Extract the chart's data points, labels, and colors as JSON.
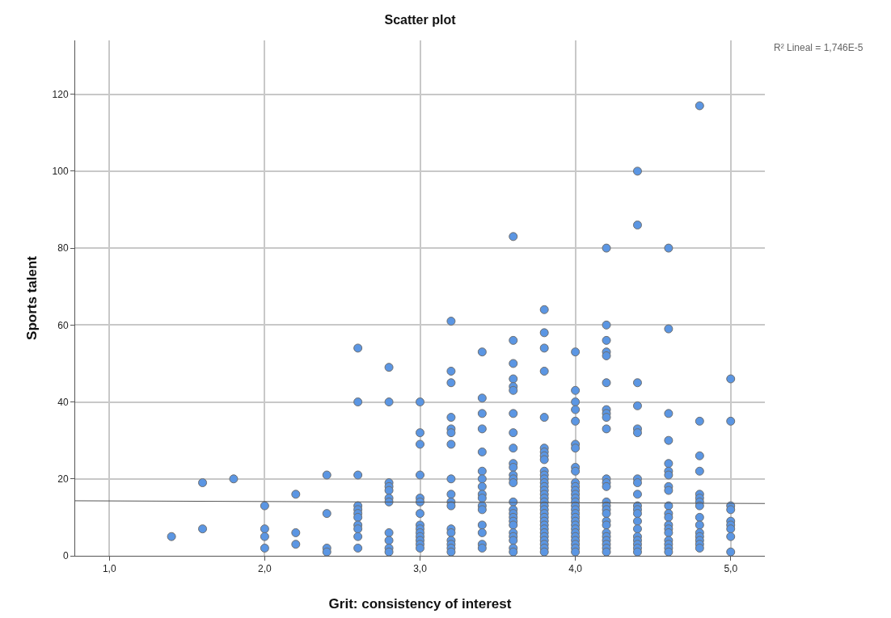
{
  "chart_data": {
    "type": "scatter",
    "title": "Scatter plot",
    "xlabel": "Grit: consistency of interest",
    "ylabel": "Sports talent",
    "xlim": [
      0.78,
      5.22
    ],
    "ylim": [
      0,
      134
    ],
    "xticks": [
      {
        "value": 1,
        "label": "1,0"
      },
      {
        "value": 2,
        "label": "2,0"
      },
      {
        "value": 3,
        "label": "3,0"
      },
      {
        "value": 4,
        "label": "4,0"
      },
      {
        "value": 5,
        "label": "5,0"
      }
    ],
    "yticks": [
      0,
      20,
      40,
      60,
      80,
      100,
      120
    ],
    "grid": true,
    "marker": "circle",
    "annotations": [
      "R² Lineal = 1,746E-5"
    ],
    "series": [
      {
        "color": "#5b96e3",
        "x": [
          1.4,
          1.6,
          1.6,
          1.8,
          2.0,
          2.0,
          2.0,
          2.0,
          2.2,
          2.2,
          2.2,
          2.4,
          2.4,
          2.4,
          2.4,
          2.6,
          2.6,
          2.6,
          2.6,
          2.6,
          2.6,
          2.6,
          2.6,
          2.6,
          2.6,
          2.6,
          2.8,
          2.8,
          2.8,
          2.8,
          2.8,
          2.8,
          2.8,
          2.8,
          2.8,
          2.8,
          2.8,
          3.0,
          3.0,
          3.0,
          3.0,
          3.0,
          3.0,
          3.0,
          3.0,
          3.0,
          3.0,
          3.0,
          3.0,
          3.0,
          3.0,
          3.2,
          3.2,
          3.2,
          3.2,
          3.2,
          3.2,
          3.2,
          3.2,
          3.2,
          3.2,
          3.2,
          3.2,
          3.2,
          3.2,
          3.2,
          3.2,
          3.2,
          3.4,
          3.4,
          3.4,
          3.4,
          3.4,
          3.4,
          3.4,
          3.4,
          3.4,
          3.4,
          3.4,
          3.4,
          3.4,
          3.4,
          3.4,
          3.4,
          3.6,
          3.6,
          3.6,
          3.6,
          3.6,
          3.6,
          3.6,
          3.6,
          3.6,
          3.6,
          3.6,
          3.6,
          3.6,
          3.6,
          3.6,
          3.6,
          3.6,
          3.6,
          3.6,
          3.6,
          3.6,
          3.6,
          3.6,
          3.6,
          3.6,
          3.8,
          3.8,
          3.8,
          3.8,
          3.8,
          3.8,
          3.8,
          3.8,
          3.8,
          3.8,
          3.8,
          3.8,
          3.8,
          3.8,
          3.8,
          3.8,
          3.8,
          3.8,
          3.8,
          3.8,
          3.8,
          3.8,
          3.8,
          3.8,
          3.8,
          3.8,
          3.8,
          3.8,
          3.8,
          3.8,
          3.8,
          4.0,
          4.0,
          4.0,
          4.0,
          4.0,
          4.0,
          4.0,
          4.0,
          4.0,
          4.0,
          4.0,
          4.0,
          4.0,
          4.0,
          4.0,
          4.0,
          4.0,
          4.0,
          4.0,
          4.0,
          4.0,
          4.0,
          4.0,
          4.0,
          4.0,
          4.0,
          4.0,
          4.0,
          4.2,
          4.2,
          4.2,
          4.2,
          4.2,
          4.2,
          4.2,
          4.2,
          4.2,
          4.2,
          4.2,
          4.2,
          4.2,
          4.2,
          4.2,
          4.2,
          4.2,
          4.2,
          4.2,
          4.2,
          4.2,
          4.2,
          4.2,
          4.2,
          4.2,
          4.4,
          4.4,
          4.4,
          4.4,
          4.4,
          4.4,
          4.4,
          4.4,
          4.4,
          4.4,
          4.4,
          4.4,
          4.4,
          4.4,
          4.4,
          4.4,
          4.4,
          4.4,
          4.4,
          4.6,
          4.6,
          4.6,
          4.6,
          4.6,
          4.6,
          4.6,
          4.6,
          4.6,
          4.6,
          4.6,
          4.6,
          4.6,
          4.6,
          4.6,
          4.6,
          4.6,
          4.6,
          4.6,
          4.8,
          4.8,
          4.8,
          4.8,
          4.8,
          4.8,
          4.8,
          4.8,
          4.8,
          4.8,
          4.8,
          4.8,
          4.8,
          4.8,
          4.8,
          5.0,
          5.0,
          5.0,
          5.0,
          5.0,
          5.0,
          5.0,
          5.0,
          5.0
        ],
        "values": [
          5,
          19,
          7,
          20,
          13,
          7,
          5,
          2,
          16,
          6,
          3,
          21,
          11,
          2,
          1,
          54,
          40,
          21,
          13,
          12,
          11,
          10,
          8,
          7,
          5,
          2,
          49,
          40,
          19,
          18,
          17,
          15,
          14,
          6,
          4,
          2,
          1,
          40,
          32,
          29,
          21,
          15,
          14,
          11,
          8,
          7,
          6,
          5,
          4,
          3,
          2,
          61,
          48,
          45,
          36,
          33,
          32,
          29,
          20,
          16,
          14,
          13,
          7,
          6,
          4,
          3,
          2,
          1,
          53,
          41,
          37,
          33,
          27,
          22,
          20,
          18,
          16,
          15,
          13,
          12,
          8,
          6,
          3,
          2,
          83,
          56,
          50,
          46,
          44,
          43,
          37,
          32,
          28,
          24,
          23,
          21,
          20,
          19,
          14,
          12,
          11,
          10,
          9,
          8,
          6,
          5,
          4,
          2,
          1,
          64,
          58,
          54,
          48,
          36,
          28,
          27,
          26,
          25,
          22,
          21,
          20,
          19,
          18,
          17,
          16,
          15,
          14,
          13,
          12,
          11,
          10,
          9,
          8,
          7,
          6,
          5,
          4,
          3,
          2,
          1,
          53,
          43,
          40,
          38,
          35,
          29,
          28,
          23,
          22,
          19,
          18,
          17,
          16,
          15,
          14,
          13,
          12,
          11,
          10,
          9,
          8,
          7,
          6,
          5,
          4,
          3,
          2,
          1,
          80,
          60,
          56,
          53,
          52,
          45,
          38,
          37,
          36,
          33,
          20,
          19,
          18,
          14,
          13,
          12,
          11,
          9,
          8,
          6,
          5,
          4,
          3,
          2,
          1,
          100,
          86,
          45,
          39,
          33,
          32,
          20,
          19,
          16,
          13,
          12,
          11,
          9,
          7,
          5,
          4,
          3,
          2,
          1,
          80,
          59,
          37,
          30,
          24,
          22,
          21,
          18,
          17,
          13,
          11,
          10,
          8,
          7,
          6,
          4,
          3,
          2,
          1,
          117,
          35,
          26,
          22,
          16,
          15,
          14,
          13,
          10,
          8,
          6,
          5,
          4,
          3,
          2,
          46,
          35,
          13,
          12,
          9,
          8,
          7,
          5,
          1
        ]
      },
      {
        "type": "line",
        "color": "#555555",
        "marker": "none",
        "x": [
          0.78,
          5.22
        ],
        "values": [
          14.3,
          13.6
        ]
      }
    ]
  }
}
